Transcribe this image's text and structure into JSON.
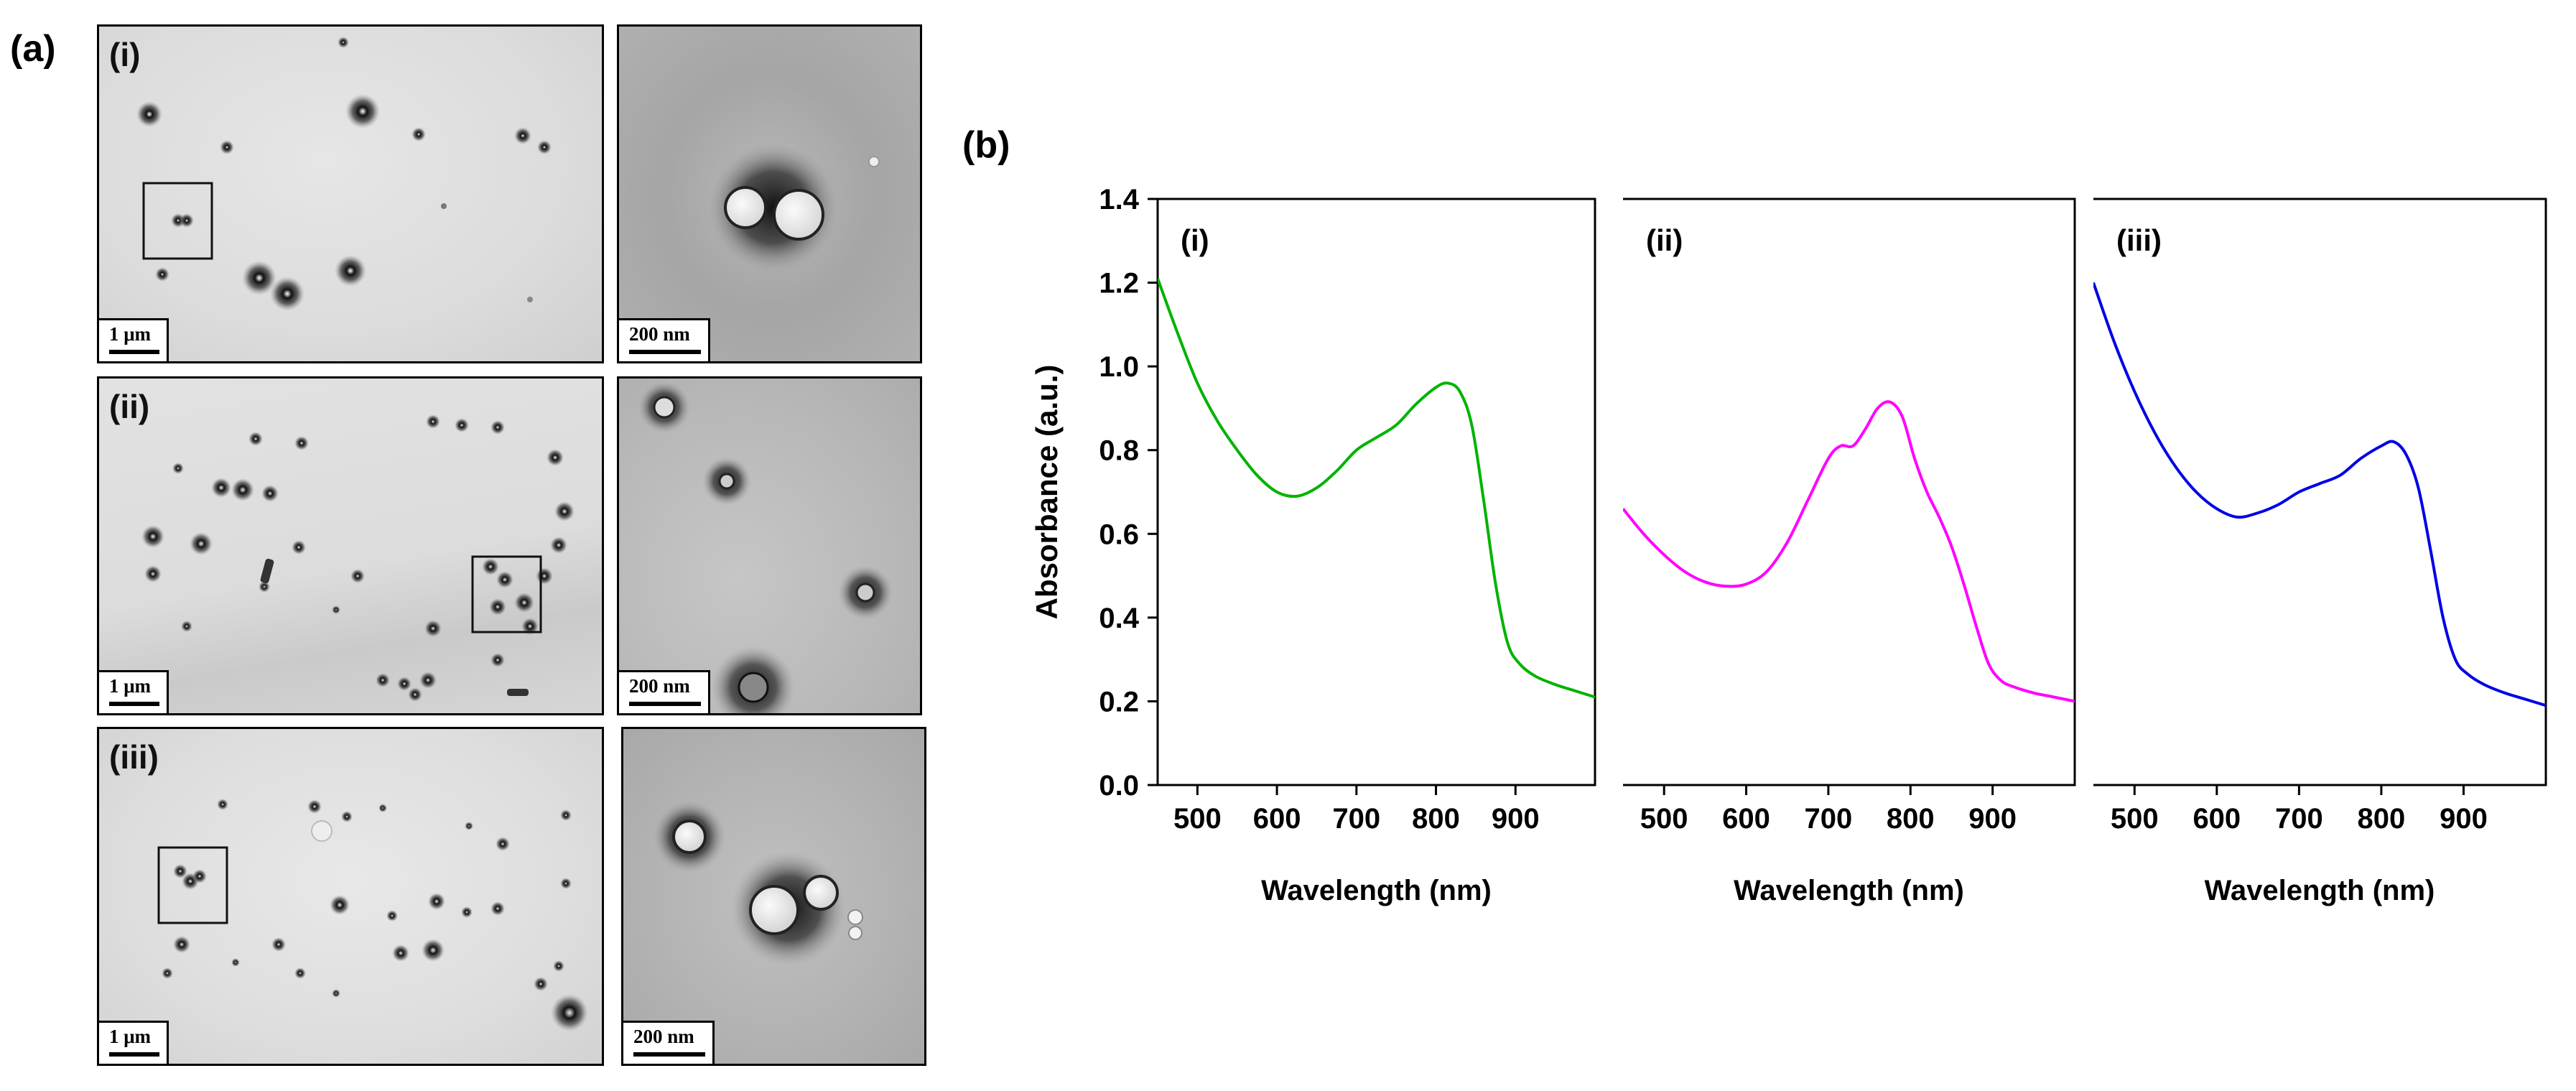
{
  "panel_a": {
    "letter": "(a)",
    "rows": [
      {
        "label": "(i)",
        "overview_scale": "1 μm",
        "zoom_scale": "200 nm"
      },
      {
        "label": "(ii)",
        "overview_scale": "1 μm",
        "zoom_scale": "200 nm"
      },
      {
        "label": "(iii)",
        "overview_scale": "1 μm",
        "zoom_scale": "200 nm"
      }
    ]
  },
  "panel_b": {
    "letter": "(b)"
  },
  "chart_data": [
    {
      "type": "line",
      "title": "(i)",
      "xlabel": "Wavelength (nm)",
      "ylabel": "Absorbance (a.u.)",
      "xlim": [
        450,
        1000
      ],
      "ylim": [
        0.0,
        1.4
      ],
      "xticks": [
        500,
        600,
        700,
        800,
        900
      ],
      "yticks": [
        "0.0",
        "0.2",
        "0.4",
        "0.6",
        "0.8",
        "1.0",
        "1.2",
        "1.4"
      ],
      "color": "#00b300",
      "x": [
        450,
        475,
        500,
        525,
        550,
        575,
        600,
        625,
        650,
        675,
        700,
        725,
        750,
        775,
        800,
        815,
        830,
        845,
        860,
        875,
        890,
        905,
        925,
        950,
        975,
        1000
      ],
      "y": [
        1.21,
        1.08,
        0.96,
        0.87,
        0.8,
        0.74,
        0.7,
        0.69,
        0.71,
        0.75,
        0.8,
        0.83,
        0.86,
        0.91,
        0.95,
        0.96,
        0.94,
        0.86,
        0.68,
        0.48,
        0.34,
        0.29,
        0.26,
        0.24,
        0.225,
        0.21
      ]
    },
    {
      "type": "line",
      "title": "(ii)",
      "xlabel": "Wavelength (nm)",
      "xlim": [
        450,
        1000
      ],
      "ylim": [
        0.0,
        1.4
      ],
      "xticks": [
        500,
        600,
        700,
        800,
        900
      ],
      "color": "#ff00ff",
      "x": [
        450,
        475,
        500,
        525,
        550,
        575,
        600,
        625,
        650,
        675,
        700,
        715,
        730,
        745,
        760,
        775,
        790,
        805,
        820,
        835,
        850,
        865,
        880,
        895,
        910,
        925,
        950,
        975,
        1000
      ],
      "y": [
        0.66,
        0.6,
        0.55,
        0.51,
        0.485,
        0.475,
        0.48,
        0.51,
        0.58,
        0.68,
        0.78,
        0.81,
        0.81,
        0.85,
        0.9,
        0.915,
        0.88,
        0.78,
        0.7,
        0.64,
        0.57,
        0.48,
        0.38,
        0.29,
        0.25,
        0.235,
        0.22,
        0.21,
        0.2
      ]
    },
    {
      "type": "line",
      "title": "(iii)",
      "xlabel": "Wavelength (nm)",
      "xlim": [
        450,
        1000
      ],
      "ylim": [
        0.0,
        1.4
      ],
      "xticks": [
        500,
        600,
        700,
        800,
        900
      ],
      "color": "#0000e6",
      "x": [
        450,
        475,
        500,
        525,
        550,
        575,
        600,
        625,
        650,
        675,
        700,
        725,
        750,
        775,
        800,
        815,
        830,
        845,
        860,
        875,
        890,
        905,
        925,
        950,
        975,
        1000
      ],
      "y": [
        1.2,
        1.06,
        0.94,
        0.84,
        0.76,
        0.7,
        0.66,
        0.64,
        0.65,
        0.67,
        0.7,
        0.72,
        0.74,
        0.78,
        0.81,
        0.82,
        0.79,
        0.71,
        0.56,
        0.4,
        0.3,
        0.265,
        0.24,
        0.22,
        0.205,
        0.19
      ]
    }
  ]
}
